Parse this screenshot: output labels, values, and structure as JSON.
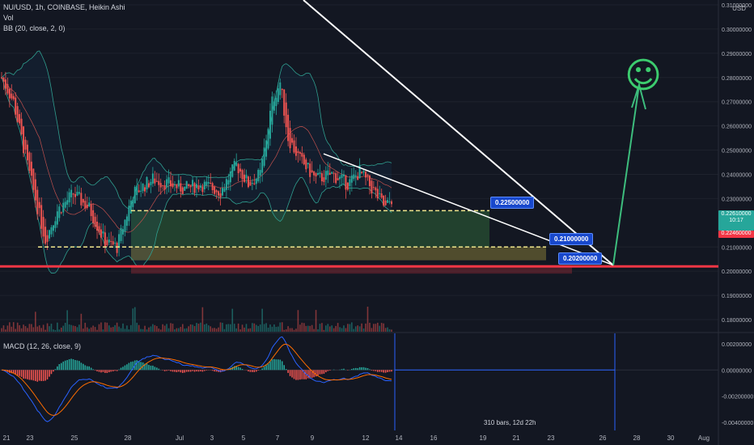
{
  "header": {
    "symbol_line": "NU/USD, 1h, COINBASE, Heikin Ashi",
    "vol_label": "Vol",
    "bb_label": "BB (20, close, 2, 0)",
    "macd_label": "MACD (12, 26, close, 9)",
    "currency": "USD"
  },
  "price_axis": {
    "ticks": [
      "0.31000000",
      "0.30000000",
      "0.29000000",
      "0.28000000",
      "0.27000000",
      "0.26000000",
      "0.25000000",
      "0.24000000",
      "0.23000000",
      "0.21000000",
      "0.20000000",
      "0.19000000",
      "0.18000000"
    ],
    "tick_values": [
      0.31,
      0.3,
      0.29,
      0.28,
      0.27,
      0.26,
      0.25,
      0.24,
      0.23,
      0.21,
      0.2,
      0.19,
      0.18
    ],
    "current_price": {
      "value": "0.22610000",
      "countdown": "10:17",
      "color": "#26a69a"
    },
    "low_marker": {
      "value": "0.22460000",
      "color": "#f23645"
    }
  },
  "macd_axis": {
    "ticks": [
      "0.00200000",
      "0.00000000",
      "-0.00200000",
      "-0.00400000"
    ],
    "tick_values": [
      0.002,
      0.0,
      -0.002,
      -0.004
    ]
  },
  "time_axis": {
    "ticks": [
      "21",
      "23",
      "25",
      "28",
      "Jul",
      "3",
      "5",
      "7",
      "9",
      "12",
      "14",
      "16",
      "19",
      "21",
      "23",
      "26",
      "28",
      "30",
      "Aug"
    ]
  },
  "annotations": {
    "level_1": "0.22500000",
    "level_2": "0.21000000",
    "level_3": "0.20200000",
    "range_info": "310 bars, 12d 22h",
    "smiley": "☺"
  },
  "colors": {
    "background": "#131722",
    "bull": "#26a69a",
    "bear": "#ef5350",
    "support_line": "#f23645",
    "arrow": "#3dbd7d",
    "label_bg": "#1848cc",
    "macd_line": "#2962ff",
    "signal_line": "#ff6d00"
  },
  "chart_data": {
    "type": "candlestick",
    "title": "NU/USD, 1h, COINBASE, Heikin Ashi",
    "ylim": [
      0.175,
      0.312
    ],
    "price_path_anchors": [
      [
        0,
        0.28
      ],
      [
        6,
        0.27
      ],
      [
        14,
        0.24
      ],
      [
        22,
        0.213
      ],
      [
        28,
        0.225
      ],
      [
        36,
        0.232
      ],
      [
        44,
        0.226
      ],
      [
        52,
        0.212
      ],
      [
        58,
        0.21
      ],
      [
        66,
        0.232
      ],
      [
        76,
        0.238
      ],
      [
        84,
        0.236
      ],
      [
        92,
        0.234
      ],
      [
        100,
        0.236
      ],
      [
        110,
        0.233
      ],
      [
        118,
        0.244
      ],
      [
        124,
        0.236
      ],
      [
        130,
        0.24
      ],
      [
        136,
        0.27
      ],
      [
        140,
        0.278
      ],
      [
        144,
        0.255
      ],
      [
        150,
        0.246
      ],
      [
        158,
        0.238
      ],
      [
        166,
        0.24
      ],
      [
        174,
        0.236
      ],
      [
        180,
        0.241
      ],
      [
        188,
        0.232
      ],
      [
        193,
        0.226
      ],
      [
        196,
        0.23
      ]
    ],
    "levels": [
      0.225,
      0.21,
      0.202
    ],
    "support_line": 0.202,
    "target_arrow_to": 0.277,
    "macd_range": [
      -0.0045,
      0.0028
    ]
  }
}
